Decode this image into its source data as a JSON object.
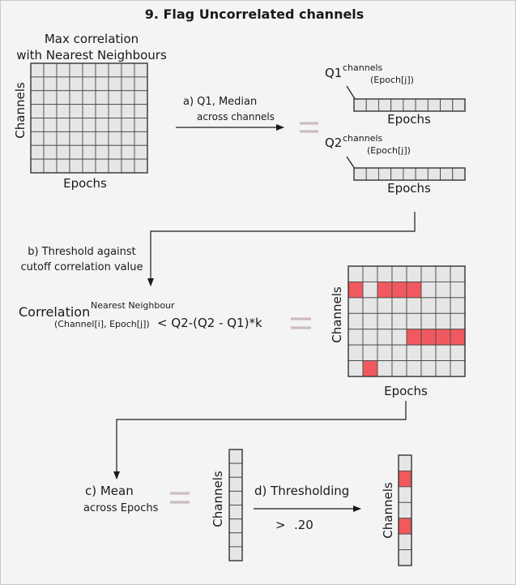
{
  "title": "9. Flag Uncorrelated channels",
  "heading": {
    "line1": "Max correlation",
    "line2": "with Nearest Neighbours"
  },
  "labels": {
    "channels": "Channels",
    "epochs": "Epochs"
  },
  "steps": {
    "a_line1": "a) Q1, Median",
    "a_line2": "across channels",
    "b_line1": "b) Threshold against",
    "b_line2": "cutoff correlation value",
    "c_line1": "c) Mean",
    "c_line2": "across Epochs",
    "d": "d) Thresholding"
  },
  "q1": {
    "base": "Q1",
    "sup": "channels",
    "sub": "(Epoch[j])"
  },
  "q2": {
    "base": "Q2",
    "sup": "channels",
    "sub": "(Epoch[j])"
  },
  "formula": {
    "base": "Correlation",
    "sup": "Nearest Neighbour",
    "sub": "(Channel[i], Epoch[j])",
    "rhs": "< Q2-(Q2 - Q1)*k"
  },
  "threshold": {
    "op": ">",
    "value": ".20"
  },
  "grid1": {
    "rows": 8,
    "cols": 9
  },
  "q_bars": {
    "cells": 9
  },
  "flagged_grid": {
    "rows": 7,
    "cols": 8,
    "flagged": [
      [
        1,
        0
      ],
      [
        1,
        2
      ],
      [
        1,
        3
      ],
      [
        1,
        4
      ],
      [
        4,
        4
      ],
      [
        4,
        5
      ],
      [
        4,
        6
      ],
      [
        4,
        7
      ],
      [
        6,
        1
      ]
    ]
  },
  "mean_column": {
    "cells": 8
  },
  "result_column": {
    "cells": 7,
    "flagged": [
      1,
      4
    ]
  },
  "colors": {
    "flag": "#f05a5e",
    "cell": "#e6e6e6",
    "equals": "#cdbcc2"
  }
}
